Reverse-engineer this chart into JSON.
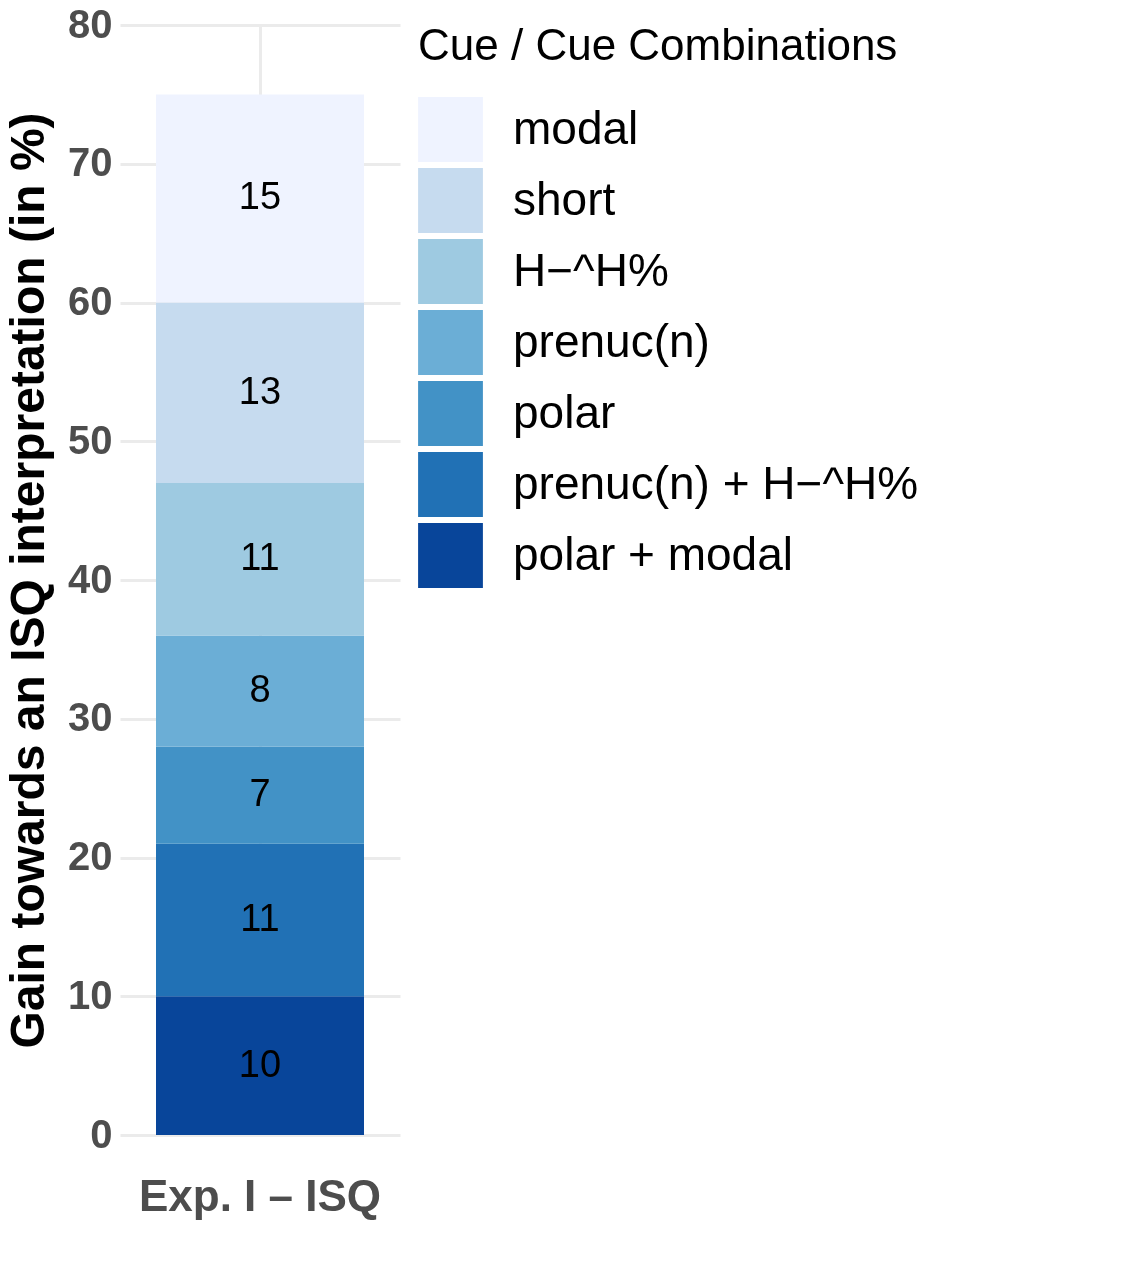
{
  "chart_data": {
    "type": "bar",
    "stacked": true,
    "ylabel": "Gain towards an ISQ interpretation (in %)",
    "legend_title": "Cue / Cue Combinations",
    "categories": [
      "Exp. I – ISQ"
    ],
    "series": [
      {
        "name": "polar + modal",
        "color": "#08459a",
        "values": [
          10
        ]
      },
      {
        "name": "prenuc(n) + H−^H%",
        "color": "#2171b5",
        "values": [
          11
        ]
      },
      {
        "name": "polar",
        "color": "#4292c6",
        "values": [
          7
        ]
      },
      {
        "name": "prenuc(n)",
        "color": "#6baed6",
        "values": [
          8
        ]
      },
      {
        "name": "H−^H%",
        "color": "#9ecae1",
        "values": [
          11
        ]
      },
      {
        "name": "short",
        "color": "#c6dbef",
        "values": [
          13
        ]
      },
      {
        "name": "modal",
        "color": "#eff3ff",
        "values": [
          15
        ]
      }
    ],
    "ylim": [
      0,
      80
    ],
    "yticks": [
      0,
      10,
      20,
      30,
      40,
      50,
      60,
      70,
      80
    ],
    "grid": true,
    "legend": "right",
    "data_labels": true
  }
}
